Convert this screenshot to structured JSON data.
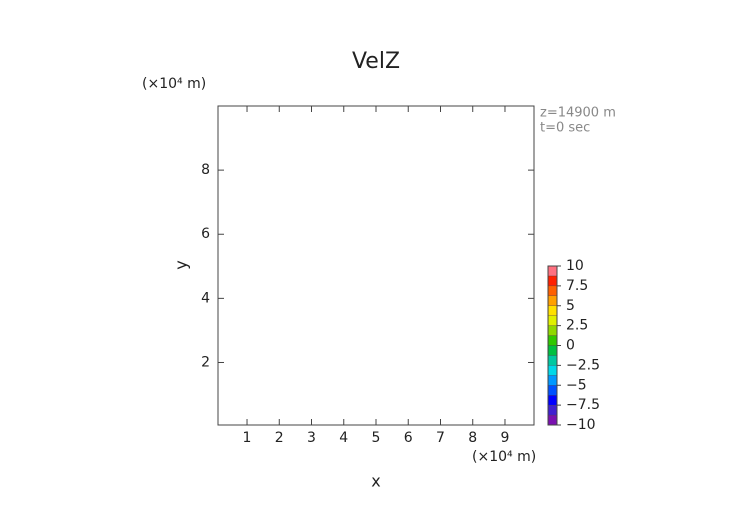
{
  "chart_data": {
    "type": "contour",
    "title": "VelZ",
    "xlabel": "x",
    "ylabel": "y",
    "xunit": "(×10⁴ m)",
    "yunit": "(×10⁴ m)",
    "annotations": [
      "z=14900 m",
      "t=0 sec"
    ],
    "xlim": [
      0.1,
      9.9
    ],
    "xticks": [
      1,
      2,
      3,
      4,
      5,
      6,
      7,
      8,
      9
    ],
    "ylim": [
      0.05,
      10
    ],
    "yticks": [
      2,
      4,
      6,
      8
    ],
    "colorbar": {
      "lim": [
        -10,
        10
      ],
      "ticks": [
        10,
        7.5,
        5,
        2.5,
        0,
        {
          "value": -2.5,
          "label": "−2.5"
        },
        {
          "value": -5,
          "label": "−5"
        },
        {
          "value": -7.5,
          "label": "−7.5"
        },
        {
          "value": -10,
          "label": "−10"
        }
      ],
      "colors": [
        "#7a10b0",
        "#4020d0",
        "#0000ff",
        "#0050ff",
        "#0098ff",
        "#00d8e8",
        "#00c8a0",
        "#00c040",
        "#30c800",
        "#90d800",
        "#e0f000",
        "#ffe000",
        "#ffa000",
        "#ff6000",
        "#ff2000",
        "#ff7080"
      ]
    }
  }
}
